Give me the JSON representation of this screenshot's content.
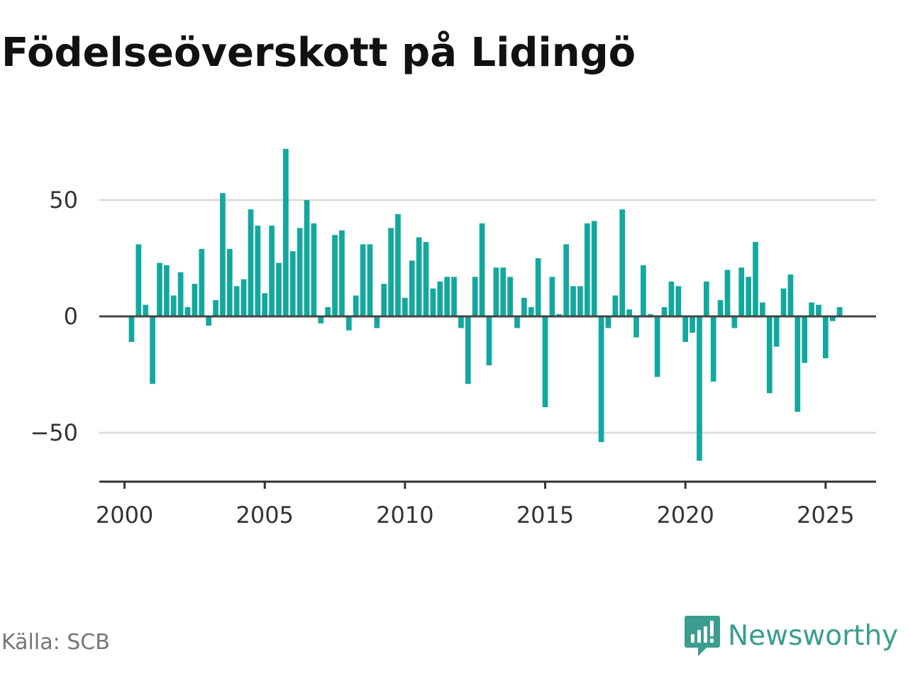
{
  "title": "Födelseöverskott på Lidingö",
  "source": "Källa: SCB",
  "brand": {
    "name": "Newsworthy",
    "icon": "newsworthy-logo-icon"
  },
  "colors": {
    "bar": "#13a89e",
    "zero_line": "#444444",
    "grid": "#dddddd",
    "axis": "#333333",
    "brand": "#3a9d8f"
  },
  "chart_data": {
    "type": "bar",
    "title": "Födelseöverskott på Lidingö",
    "xlabel": "",
    "ylabel": "",
    "xlim": [
      1999.1,
      2026.8
    ],
    "ylim": [
      -71,
      75
    ],
    "x_ticks": [
      2000,
      2005,
      2010,
      2015,
      2020,
      2025
    ],
    "y_ticks": [
      -50,
      0,
      50
    ],
    "y_tick_labels": [
      "−50",
      "0",
      "50"
    ],
    "grid": true,
    "x": [
      2000.25,
      2000.5,
      2000.75,
      2001.0,
      2001.25,
      2001.5,
      2001.75,
      2002.0,
      2002.25,
      2002.5,
      2002.75,
      2003.0,
      2003.25,
      2003.5,
      2003.75,
      2004.0,
      2004.25,
      2004.5,
      2004.75,
      2005.0,
      2005.25,
      2005.5,
      2005.75,
      2006.0,
      2006.25,
      2006.5,
      2006.75,
      2007.0,
      2007.25,
      2007.5,
      2007.75,
      2008.0,
      2008.25,
      2008.5,
      2008.75,
      2009.0,
      2009.25,
      2009.5,
      2009.75,
      2010.0,
      2010.25,
      2010.5,
      2010.75,
      2011.0,
      2011.25,
      2011.5,
      2011.75,
      2012.0,
      2012.25,
      2012.5,
      2012.75,
      2013.0,
      2013.25,
      2013.5,
      2013.75,
      2014.0,
      2014.25,
      2014.5,
      2014.75,
      2015.0,
      2015.25,
      2015.5,
      2015.75,
      2016.0,
      2016.25,
      2016.5,
      2016.75,
      2017.0,
      2017.25,
      2017.5,
      2017.75,
      2018.0,
      2018.25,
      2018.5,
      2018.75,
      2019.0,
      2019.25,
      2019.5,
      2019.75,
      2020.0,
      2020.25,
      2020.5,
      2020.75,
      2021.0,
      2021.25,
      2021.5,
      2021.75,
      2022.0,
      2022.25,
      2022.5,
      2022.75,
      2023.0,
      2023.25,
      2023.5,
      2023.75,
      2024.0,
      2024.25,
      2024.5,
      2024.75,
      2025.0,
      2025.25,
      2025.5
    ],
    "values": [
      -11,
      31,
      5,
      -29,
      23,
      22,
      9,
      19,
      4,
      14,
      29,
      -4,
      7,
      53,
      29,
      13,
      16,
      46,
      39,
      10,
      39,
      23,
      72,
      28,
      38,
      50,
      40,
      -3,
      4,
      35,
      37,
      -6,
      9,
      31,
      31,
      -5,
      14,
      38,
      44,
      8,
      24,
      34,
      32,
      12,
      15,
      17,
      17,
      -5,
      -29,
      17,
      40,
      -21,
      21,
      21,
      17,
      -5,
      8,
      4,
      25,
      -39,
      17,
      1,
      31,
      13,
      13,
      40,
      41,
      -54,
      -5,
      9,
      46,
      3,
      -9,
      22,
      1,
      -26,
      4,
      15,
      13,
      -11,
      -7,
      -62,
      15,
      -28,
      7,
      20,
      -5,
      21,
      17,
      32,
      6,
      -33,
      -13,
      12,
      18,
      -41,
      -20,
      6,
      5,
      -18,
      -2,
      4
    ]
  }
}
